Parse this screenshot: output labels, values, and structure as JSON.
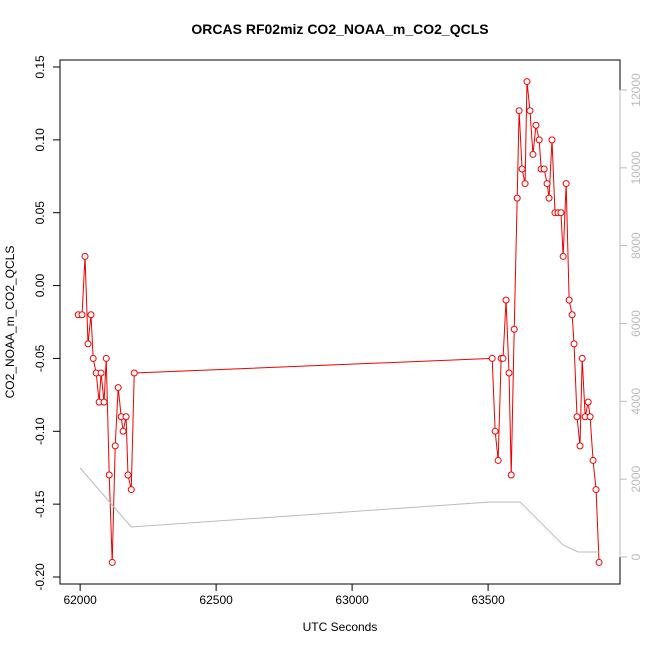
{
  "chart_data": {
    "type": "line",
    "title": "ORCAS RF02miz CO2_NOAA_m_CO2_QCLS",
    "x_label": "UTC Seconds",
    "y_label": "CO2_NOAA_m_CO2_QCLS",
    "xlim": [
      61926,
      63985
    ],
    "xticks": [
      62000,
      62500,
      63000,
      63500
    ],
    "ylim": [
      -0.2048,
      0.1548
    ],
    "yticks": [
      -0.2,
      -0.15,
      -0.1,
      -0.05,
      0,
      0.05,
      0.1,
      0.15
    ],
    "y2lim": [
      -694,
      12771
    ],
    "y2ticks": [
      0,
      2000,
      4000,
      6000,
      8000,
      10000,
      12000
    ],
    "y2_color": "#bbbbbb",
    "yticks_labels": [
      "-0.20",
      "-0.15",
      "-0.10",
      "-0.05",
      "0.00",
      "0.05",
      "0.10",
      "0.15"
    ],
    "series": [
      {
        "color": "#ee0000",
        "markers": true,
        "x": [
          61993,
          62007,
          62018,
          62029,
          62040,
          62048,
          62059,
          62070,
          62077,
          62088,
          62096,
          62107,
          62118,
          62129,
          62140,
          62151,
          62158,
          62169,
          62176,
          62188,
          62199,
          63515,
          63526,
          63537,
          63548,
          63555,
          63566,
          63577,
          63585,
          63596,
          63607,
          63614,
          63625,
          63636,
          63643,
          63654,
          63665,
          63676,
          63688,
          63695,
          63706,
          63717,
          63724,
          63735,
          63746,
          63757,
          63768,
          63776,
          63787,
          63798,
          63809,
          63816,
          63827,
          63838,
          63846,
          63857,
          63868,
          63875,
          63886,
          63897,
          63908
        ],
        "values": [
          -0.02,
          -0.02,
          0.02,
          -0.04,
          -0.02,
          -0.05,
          -0.06,
          -0.08,
          -0.06,
          -0.08,
          -0.05,
          -0.13,
          -0.19,
          -0.11,
          -0.07,
          -0.09,
          -0.1,
          -0.09,
          -0.13,
          -0.14,
          -0.06,
          -0.05,
          -0.1,
          -0.12,
          -0.05,
          -0.05,
          -0.01,
          -0.06,
          -0.13,
          -0.03,
          0.06,
          0.12,
          0.08,
          0.07,
          0.14,
          0.12,
          0.09,
          0.11,
          0.1,
          0.08,
          0.08,
          0.07,
          0.06,
          0.1,
          0.05,
          0.05,
          0.05,
          0.02,
          0.07,
          -0.01,
          -0.02,
          -0.04,
          -0.09,
          -0.11,
          -0.05,
          -0.09,
          -0.08,
          -0.09,
          -0.12,
          -0.14,
          -0.19
        ]
      },
      {
        "color": "#bbbbbb",
        "axis": "y2",
        "markers": false,
        "x": [
          62000,
          62188,
          63507,
          63618,
          63776,
          63831,
          63912
        ],
        "values": [
          2287,
          771,
          1413,
          1413,
          308,
          128,
          128
        ]
      }
    ]
  }
}
